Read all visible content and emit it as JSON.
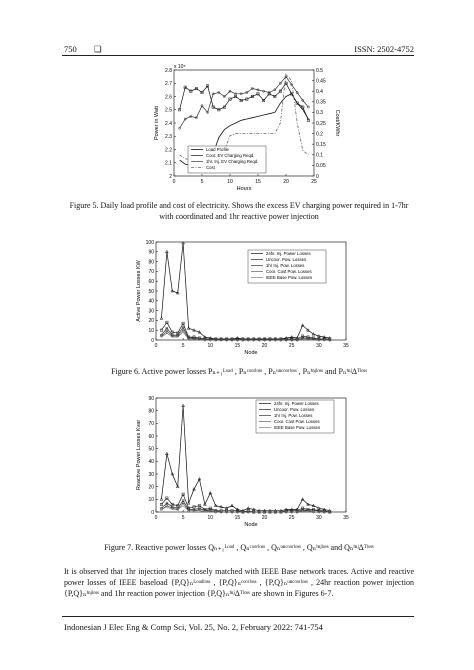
{
  "header": {
    "page_number": "750",
    "logo_glyph": "❏",
    "issn": "ISSN: 2502-4752"
  },
  "footer": {
    "journal": "Indonesian J Elec Eng & Comp Sci, Vol. 25, No. 2, February 2022: 741-754"
  },
  "captions": {
    "fig5_line1": "Figure 5. Daily load profile and cost of electricity. Shows the excess EV charging power required in 1-7hr",
    "fig5_line2": "with coordinated and 1hr reactive power injection",
    "fig6": "Figure 6. Active power losses Pₙ₊₁ᴸᵒᵃᵈ , Pₙᶜᵒᵒʳˡᵒˢˢ , Pₙᵘⁿᶜᵒᵒʳˡᵒˢˢ , Pₙⁱⁿʲˡᵒˢˢ and PₙⁱⁿʲΔᵀˡᵒˢˢ",
    "fig7": "Figure 7. Reactive power losses Qₙ₊₁ᴸᵒᵃᵈ , Qₙᶜᵒᵒʳˡᵒˢˢ , Qₙᵘⁿᶜᵒᵒʳˡᵒˢˢ , Qₙⁱⁿʲˡᵒˢˢ and QₙⁱⁿʲΔᵀˡᵒˢˢ"
  },
  "body_text": "It is observed that 1hr injection traces closely matched with IEEE Base network traces. Active and reactive power losses of IEEE baseload {P,Q}ₙᴸᵒᵃᵈˡᵒˢˢ , {P,Q}ₙᶜᵒᵒʳˡᵒˢˢ , {P,Q}ₙᵘⁿᶜᵒᵒʳˡᵒˢˢ , 24hr reaction power injection {P,Q}ₙⁱⁿʲˡᵒˢˢ and 1hr reaction power injection {P,Q}ₙⁱⁿʲΔᵀˡᵒˢˢ are shown in Figures 6-7.",
  "chart_data": [
    {
      "type": "line",
      "xlabel": "Hours",
      "ylabel": "Power in Watt",
      "y2label": "Cost/KWhr",
      "y_exponent": "x 10⁵",
      "xlim": [
        0,
        25
      ],
      "xticks": [
        0,
        5,
        10,
        15,
        20,
        25
      ],
      "ylim": [
        2,
        2.8
      ],
      "yticks": [
        2,
        2.1,
        2.2,
        2.3,
        2.4,
        2.5,
        2.6,
        2.7,
        2.8
      ],
      "y2lim": [
        0,
        0.5
      ],
      "y2ticks": [
        0,
        0.05,
        0.1,
        0.15,
        0.2,
        0.25,
        0.3,
        0.35,
        0.4,
        0.45,
        0.5
      ],
      "legend_position": "lower-left",
      "series": [
        {
          "name": "Load Profile",
          "axis": "left",
          "style": "solid",
          "x": [
            1,
            2,
            3,
            4,
            5,
            6,
            7,
            8,
            9,
            10,
            11,
            12,
            13,
            14,
            15,
            16,
            17,
            18,
            19,
            20,
            21,
            22,
            23,
            24
          ],
          "values": [
            2.12,
            2.09,
            2.08,
            2.07,
            2.06,
            2.1,
            2.17,
            2.29,
            2.35,
            2.38,
            2.4,
            2.42,
            2.43,
            2.44,
            2.45,
            2.46,
            2.47,
            2.48,
            2.55,
            2.6,
            2.62,
            2.55,
            2.5,
            2.43
          ]
        },
        {
          "name": "Coor. EV Charging Reqd.",
          "axis": "left",
          "style": "square",
          "x": [
            1,
            2,
            3,
            4,
            5,
            6,
            7,
            8,
            9,
            10,
            11,
            12,
            13,
            14,
            15,
            16,
            17,
            18,
            19,
            20,
            21,
            22,
            23,
            24
          ],
          "values": [
            2.5,
            2.67,
            2.64,
            2.66,
            2.63,
            2.68,
            2.52,
            2.5,
            2.52,
            2.58,
            2.6,
            2.57,
            2.58,
            2.6,
            2.62,
            2.57,
            2.62,
            2.6,
            2.64,
            2.7,
            2.62,
            2.55,
            2.52,
            2.42
          ]
        },
        {
          "name": "1hr. Inj. EV Charging Reqd.",
          "axis": "left",
          "style": "marker",
          "x": [
            1,
            2,
            3,
            4,
            5,
            6,
            7,
            8,
            9,
            10,
            11,
            12,
            13,
            14,
            15,
            16,
            17,
            18,
            19,
            20,
            21,
            22,
            23,
            24
          ],
          "values": [
            2.36,
            2.43,
            2.45,
            2.44,
            2.53,
            2.48,
            2.62,
            2.63,
            2.6,
            2.64,
            2.62,
            2.62,
            2.63,
            2.66,
            2.65,
            2.64,
            2.63,
            2.65,
            2.7,
            2.75,
            2.69,
            2.63,
            2.57,
            2.52
          ]
        },
        {
          "name": "Cost",
          "axis": "right",
          "style": "dashdot",
          "x": [
            1,
            2,
            3,
            4,
            5,
            6,
            7,
            8,
            9,
            10,
            11,
            12,
            13,
            14,
            15,
            16,
            17,
            18,
            19,
            20,
            21,
            22,
            23,
            24
          ],
          "values": [
            0.1,
            0.08,
            0.08,
            0.08,
            0.08,
            0.08,
            0.09,
            0.1,
            0.12,
            0.19,
            0.2,
            0.2,
            0.2,
            0.2,
            0.2,
            0.2,
            0.2,
            0.2,
            0.25,
            0.48,
            0.45,
            0.25,
            0.12,
            0.1
          ]
        }
      ]
    },
    {
      "type": "line",
      "xlabel": "Node",
      "ylabel": "Active Power Losses KW",
      "xlim": [
        0,
        35
      ],
      "xticks": [
        0,
        5,
        10,
        15,
        20,
        25,
        30,
        35
      ],
      "ylim": [
        0,
        100
      ],
      "yticks": [
        0,
        10,
        20,
        30,
        40,
        50,
        60,
        70,
        80,
        90,
        100
      ],
      "legend_position": "top-right",
      "series": [
        {
          "name": "24hr. Inj. Power Losses",
          "x": [
            1,
            2,
            3,
            4,
            5,
            6,
            7,
            8,
            9,
            10,
            11,
            12,
            13,
            14,
            15,
            16,
            17,
            18,
            19,
            20,
            21,
            22,
            23,
            24,
            25,
            26,
            27,
            28,
            29,
            30,
            31,
            32
          ],
          "values": [
            22,
            90,
            50,
            48,
            99,
            12,
            10,
            8,
            3,
            2,
            1,
            1,
            1,
            1,
            2,
            1,
            1,
            1,
            1,
            1,
            1,
            1,
            1,
            2,
            3,
            2,
            15,
            10,
            6,
            4,
            3,
            2
          ]
        },
        {
          "name": "Uncoor. Pow. Losses",
          "x": [
            1,
            2,
            3,
            4,
            5,
            6,
            7,
            8,
            9,
            10,
            11,
            12,
            13,
            14,
            15,
            16,
            17,
            18,
            19,
            20,
            21,
            22,
            23,
            24,
            25,
            26,
            27,
            28,
            29,
            30,
            31,
            32
          ],
          "values": [
            10,
            18,
            8,
            7,
            17,
            3,
            3,
            2,
            1,
            1,
            1,
            1,
            1,
            1,
            1,
            1,
            1,
            1,
            1,
            1,
            1,
            1,
            1,
            1,
            1,
            1,
            4,
            3,
            2,
            1,
            1,
            1
          ]
        },
        {
          "name": "1hr Inj. Pow. Losses",
          "x": [
            1,
            2,
            3,
            4,
            5,
            6,
            7,
            8,
            9,
            10,
            11,
            12,
            13,
            14,
            15,
            16,
            17,
            18,
            19,
            20,
            21,
            22,
            23,
            24,
            25,
            26,
            27,
            28,
            29,
            30,
            31,
            32
          ],
          "values": [
            5,
            12,
            5,
            5,
            13,
            2,
            2,
            1,
            1,
            1,
            0,
            0,
            0,
            0,
            0,
            0,
            0,
            0,
            0,
            0,
            0,
            0,
            0,
            0,
            0,
            0,
            2,
            2,
            1,
            1,
            1,
            0
          ]
        },
        {
          "name": "Coor. Cost Pow. Losses",
          "x": [
            1,
            2,
            3,
            4,
            5,
            6,
            7,
            8,
            9,
            10,
            11,
            12,
            13,
            14,
            15,
            16,
            17,
            18,
            19,
            20,
            21,
            22,
            23,
            24,
            25,
            26,
            27,
            28,
            29,
            30,
            31,
            32
          ],
          "values": [
            4,
            9,
            4,
            4,
            10,
            2,
            1,
            1,
            0,
            0,
            0,
            0,
            0,
            0,
            0,
            0,
            0,
            0,
            0,
            0,
            0,
            0,
            0,
            0,
            0,
            0,
            2,
            1,
            1,
            0,
            0,
            0
          ]
        },
        {
          "name": "IEEE Base Pow. Losses",
          "x": [
            1,
            2,
            3,
            4,
            5,
            6,
            7,
            8,
            9,
            10,
            11,
            12,
            13,
            14,
            15,
            16,
            17,
            18,
            19,
            20,
            21,
            22,
            23,
            24,
            25,
            26,
            27,
            28,
            29,
            30,
            31,
            32
          ],
          "values": [
            3,
            7,
            3,
            3,
            8,
            1,
            1,
            1,
            0,
            0,
            0,
            0,
            0,
            0,
            0,
            0,
            0,
            0,
            0,
            0,
            0,
            0,
            0,
            0,
            0,
            0,
            1,
            1,
            0,
            0,
            0,
            0
          ]
        }
      ]
    },
    {
      "type": "line",
      "xlabel": "Node",
      "ylabel": "Reactive Power Losses Kvar",
      "xlim": [
        0,
        35
      ],
      "xticks": [
        0,
        5,
        10,
        15,
        20,
        25,
        30,
        35
      ],
      "ylim": [
        0,
        90
      ],
      "yticks": [
        0,
        10,
        20,
        30,
        40,
        50,
        60,
        70,
        80,
        90
      ],
      "legend_position": "top-right",
      "series": [
        {
          "name": "24hr. Inj. Power Losses",
          "x": [
            1,
            2,
            3,
            4,
            5,
            6,
            7,
            8,
            9,
            10,
            11,
            12,
            13,
            14,
            15,
            16,
            17,
            18,
            19,
            20,
            21,
            22,
            23,
            24,
            25,
            26,
            27,
            28,
            29,
            30,
            31,
            32
          ],
          "values": [
            10,
            46,
            30,
            20,
            84,
            7,
            18,
            26,
            6,
            15,
            5,
            4,
            3,
            5,
            2,
            1,
            3,
            2,
            1,
            1,
            1,
            1,
            1,
            2,
            2,
            2,
            10,
            6,
            5,
            3,
            2,
            1
          ]
        },
        {
          "name": "Uncoor. Pow. Losses",
          "x": [
            1,
            2,
            3,
            4,
            5,
            6,
            7,
            8,
            9,
            10,
            11,
            12,
            13,
            14,
            15,
            16,
            17,
            18,
            19,
            20,
            21,
            22,
            23,
            24,
            25,
            26,
            27,
            28,
            29,
            30,
            31,
            32
          ],
          "values": [
            6,
            11,
            6,
            5,
            14,
            3,
            4,
            5,
            2,
            3,
            1,
            1,
            1,
            1,
            1,
            0,
            1,
            0,
            0,
            0,
            0,
            0,
            0,
            1,
            1,
            1,
            3,
            2,
            2,
            1,
            1,
            0
          ]
        },
        {
          "name": "1hr Inj. Pow. Losses",
          "x": [
            1,
            2,
            3,
            4,
            5,
            6,
            7,
            8,
            9,
            10,
            11,
            12,
            13,
            14,
            15,
            16,
            17,
            18,
            19,
            20,
            21,
            22,
            23,
            24,
            25,
            26,
            27,
            28,
            29,
            30,
            31,
            32
          ],
          "values": [
            3,
            7,
            4,
            3,
            9,
            2,
            2,
            3,
            1,
            2,
            1,
            0,
            0,
            0,
            0,
            0,
            0,
            0,
            0,
            0,
            0,
            0,
            0,
            0,
            0,
            0,
            2,
            1,
            1,
            1,
            0,
            0
          ]
        },
        {
          "name": "Coor. Cost Pow. Losses",
          "x": [
            1,
            2,
            3,
            4,
            5,
            6,
            7,
            8,
            9,
            10,
            11,
            12,
            13,
            14,
            15,
            16,
            17,
            18,
            19,
            20,
            21,
            22,
            23,
            24,
            25,
            26,
            27,
            28,
            29,
            30,
            31,
            32
          ],
          "values": [
            2,
            5,
            3,
            2,
            7,
            1,
            1,
            2,
            1,
            1,
            0,
            0,
            0,
            0,
            0,
            0,
            0,
            0,
            0,
            0,
            0,
            0,
            0,
            0,
            0,
            0,
            1,
            1,
            0,
            0,
            0,
            0
          ]
        },
        {
          "name": "IEEE Base Pow. Losses",
          "x": [
            1,
            2,
            3,
            4,
            5,
            6,
            7,
            8,
            9,
            10,
            11,
            12,
            13,
            14,
            15,
            16,
            17,
            18,
            19,
            20,
            21,
            22,
            23,
            24,
            25,
            26,
            27,
            28,
            29,
            30,
            31,
            32
          ],
          "values": [
            2,
            4,
            2,
            2,
            5,
            1,
            1,
            1,
            0,
            1,
            0,
            0,
            0,
            0,
            0,
            0,
            0,
            0,
            0,
            0,
            0,
            0,
            0,
            0,
            0,
            0,
            1,
            0,
            0,
            0,
            0,
            0
          ]
        }
      ]
    }
  ]
}
